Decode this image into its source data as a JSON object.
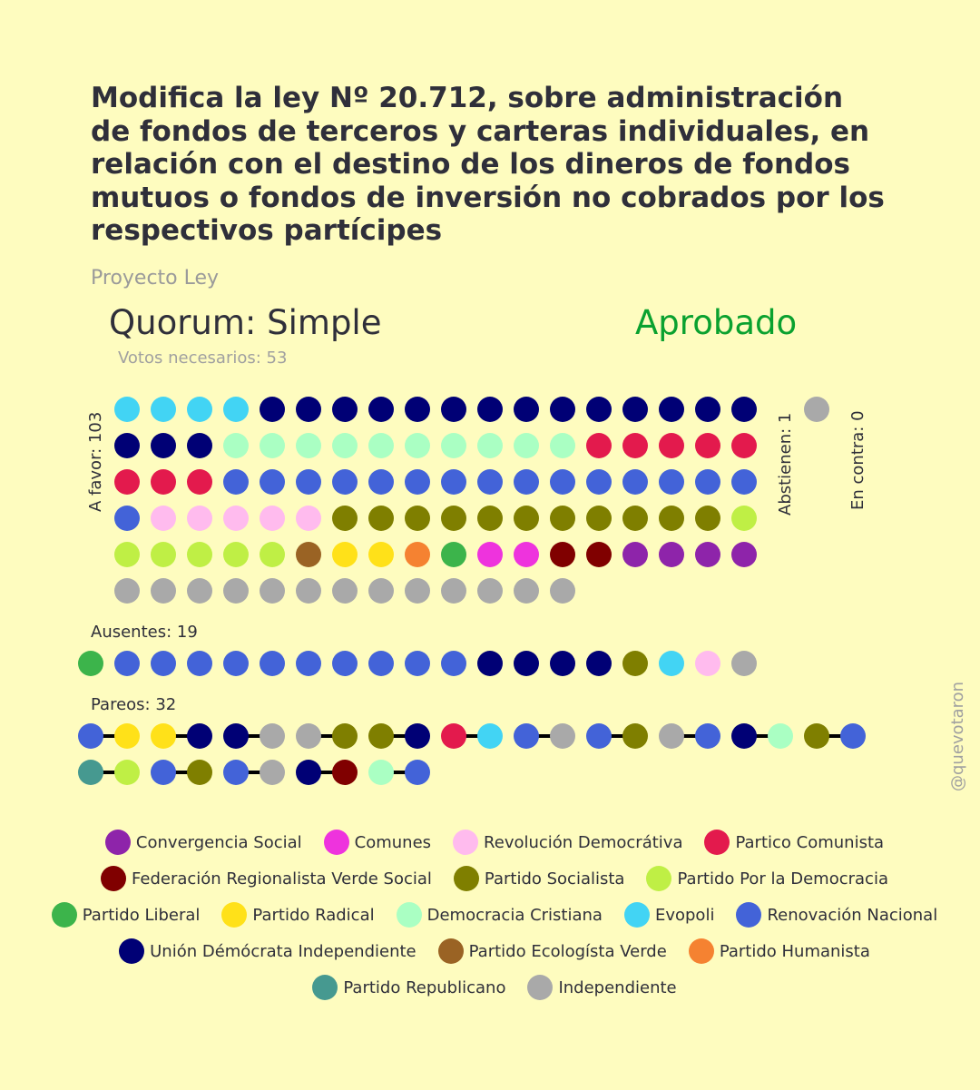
{
  "title": "Modifica la ley Nº 20.712, sobre administración de fondos de terceros y carteras individuales, en relación con el destino de los dineros de fondos mutuos o fondos de inversión no cobrados por los respectivos partícipes",
  "subtitle": "Proyecto Ley",
  "quorum": "Quorum: Simple",
  "result": "Aprobado",
  "votes_needed": "Votos necesarios: 53",
  "labels": {
    "favor": "A favor: 103",
    "abstienen": "Abstienen: 1",
    "contra": "En contra: 0",
    "ausentes": "Ausentes: 19",
    "pareos": "Pareos: 32",
    "handle": "@quevotaron"
  },
  "colors": {
    "background": "#fefcbf",
    "result": "#0aa12f",
    "CS": "#8e24aa",
    "COM": "#ee33dd",
    "RD": "#ffbbee",
    "PC": "#e31a4d",
    "FRVS": "#800000",
    "PS": "#7f7f00",
    "PPD": "#bfef45",
    "PL": "#3cb44b",
    "PR": "#ffe119",
    "DC": "#aaffc3",
    "EVO": "#42d4f4",
    "RN": "#4363d8",
    "UDI": "#000075",
    "PEV": "#9a6324",
    "PH": "#f58231",
    "REP": "#469990",
    "IND": "#a9a9a9"
  },
  "legend": [
    [
      {
        "key": "CS",
        "label": "Convergencia Social"
      },
      {
        "key": "COM",
        "label": "Comunes"
      },
      {
        "key": "RD",
        "label": "Revolución Democrátiva"
      },
      {
        "key": "PC",
        "label": "Partico Comunista"
      }
    ],
    [
      {
        "key": "FRVS",
        "label": "Federación Regionalista Verde Social"
      },
      {
        "key": "PS",
        "label": "Partido Socialista"
      },
      {
        "key": "PPD",
        "label": "Partido Por la Democracia"
      }
    ],
    [
      {
        "key": "PL",
        "label": "Partido Liberal"
      },
      {
        "key": "PR",
        "label": "Partido Radical"
      },
      {
        "key": "DC",
        "label": "Democracia Cristiana"
      },
      {
        "key": "EVO",
        "label": "Evopoli"
      },
      {
        "key": "RN",
        "label": "Renovación Nacional"
      }
    ],
    [
      {
        "key": "UDI",
        "label": "Unión Démócrata Independiente"
      },
      {
        "key": "PEV",
        "label": "Partido Ecologísta Verde"
      },
      {
        "key": "PH",
        "label": "Partido Humanista"
      }
    ],
    [
      {
        "key": "REP",
        "label": "Partido Republicano"
      },
      {
        "key": "IND",
        "label": "Independiente"
      }
    ]
  ],
  "chart_data": {
    "type": "dot-matrix",
    "a_favor": [
      "EVO",
      "EVO",
      "EVO",
      "EVO",
      "UDI",
      "UDI",
      "UDI",
      "UDI",
      "UDI",
      "UDI",
      "UDI",
      "UDI",
      "UDI",
      "UDI",
      "UDI",
      "UDI",
      "UDI",
      "UDI",
      "UDI",
      "UDI",
      "UDI",
      "DC",
      "DC",
      "DC",
      "DC",
      "DC",
      "DC",
      "DC",
      "DC",
      "DC",
      "DC",
      "PC",
      "PC",
      "PC",
      "PC",
      "PC",
      "PC",
      "PC",
      "PC",
      "RN",
      "RN",
      "RN",
      "RN",
      "RN",
      "RN",
      "RN",
      "RN",
      "RN",
      "RN",
      "RN",
      "RN",
      "RN",
      "RN",
      "RN",
      "RN",
      "RD",
      "RD",
      "RD",
      "RD",
      "RD",
      "PS",
      "PS",
      "PS",
      "PS",
      "PS",
      "PS",
      "PS",
      "PS",
      "PS",
      "PS",
      "PS",
      "PPD",
      "PPD",
      "PPD",
      "PPD",
      "PPD",
      "PPD",
      "PEV",
      "PR",
      "PR",
      "PH",
      "PL",
      "COM",
      "COM",
      "FRVS",
      "FRVS",
      "CS",
      "CS",
      "CS",
      "CS",
      "IND",
      "IND",
      "IND",
      "IND",
      "IND",
      "IND",
      "IND",
      "IND",
      "IND",
      "IND",
      "IND",
      "IND",
      "IND"
    ],
    "abstienen": [
      "IND"
    ],
    "en_contra": [],
    "ausentes": [
      "PL",
      "RN",
      "RN",
      "RN",
      "RN",
      "RN",
      "RN",
      "RN",
      "RN",
      "RN",
      "RN",
      "UDI",
      "UDI",
      "UDI",
      "UDI",
      "PS",
      "EVO",
      "RD",
      "IND"
    ],
    "pareos": [
      [
        "RN",
        "PR"
      ],
      [
        "PR",
        "UDI"
      ],
      [
        "UDI",
        "IND"
      ],
      [
        "IND",
        "PS"
      ],
      [
        "PS",
        "UDI"
      ],
      [
        "PC",
        "EVO"
      ],
      [
        "RN",
        "IND"
      ],
      [
        "RN",
        "PS"
      ],
      [
        "IND",
        "RN"
      ],
      [
        "UDI",
        "DC"
      ],
      [
        "PS",
        "RN"
      ],
      [
        "REP",
        "PPD"
      ],
      [
        "RN",
        "PS"
      ],
      [
        "RN",
        "IND"
      ],
      [
        "UDI",
        "FRVS"
      ],
      [
        "DC",
        "RN"
      ]
    ]
  }
}
